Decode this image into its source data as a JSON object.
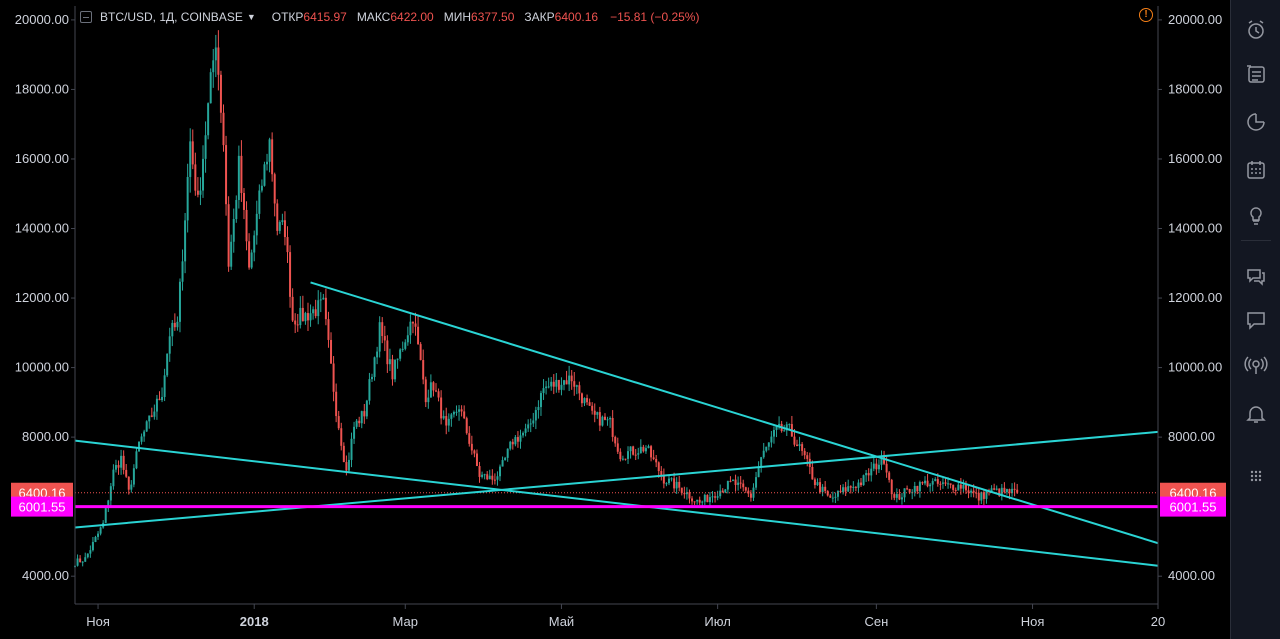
{
  "header": {
    "symbol": "BTC/USD, 1Д, COINBASE",
    "open_label": "ОТКР",
    "open_value": "6415.97",
    "high_label": "МАКС",
    "high_value": "6422.00",
    "low_label": "МИН",
    "low_value": "6377.50",
    "close_label": "ЗАКР",
    "close_value": "6400.16",
    "change": "−15.81 (−0.25%)"
  },
  "warning_icon": "!",
  "sidebar": {
    "icons": [
      "alarm-clock-icon",
      "watchlist-icon",
      "data-window-icon",
      "calendar-icon",
      "ideas-lightbulb-icon",
      "chat-icon",
      "private-chat-icon",
      "broadcast-icon",
      "notifications-bell-icon",
      "more-dots-icon"
    ]
  },
  "colors": {
    "up": "#26a69a",
    "down": "#ef5350",
    "trendline": "#2ad4d4",
    "support": "#ff00ff",
    "price_line": "#ef5350",
    "background": "#000000"
  },
  "chart_data": {
    "type": "candlestick",
    "symbol": "BTC/USD",
    "interval": "1Д",
    "exchange": "COINBASE",
    "ylim": [
      3200,
      20400
    ],
    "y_ticks": [
      "20000.00",
      "18000.00",
      "16000.00",
      "14000.00",
      "12000.00",
      "10000.00",
      "8000.00",
      "4000.00"
    ],
    "x_ticks": [
      "Ноя",
      "2018",
      "Мар",
      "Май",
      "Июл",
      "Сен",
      "Ноя",
      "20"
    ],
    "last_price_label": "6400.16",
    "support_label": "6001.55",
    "last_price": 6400.16,
    "support_level": 6001.55,
    "start_date": "2017-10-23",
    "end_date": "2018-12-20",
    "anchors": [
      [
        "2017-10-23",
        4400
      ],
      [
        "2017-10-27",
        4500
      ],
      [
        "2017-11-03",
        5500
      ],
      [
        "2017-11-07",
        7000
      ],
      [
        "2017-11-10",
        7400
      ],
      [
        "2017-11-13",
        6400
      ],
      [
        "2017-11-17",
        7800
      ],
      [
        "2017-11-26",
        9300
      ],
      [
        "2017-11-29",
        11000
      ],
      [
        "2017-12-02",
        11200
      ],
      [
        "2017-12-07",
        16500
      ],
      [
        "2017-12-10",
        14700
      ],
      [
        "2017-12-13",
        16800
      ],
      [
        "2017-12-17",
        19500
      ],
      [
        "2017-12-20",
        16500
      ],
      [
        "2017-12-22",
        13000
      ],
      [
        "2017-12-24",
        14200
      ],
      [
        "2017-12-26",
        15800
      ],
      [
        "2017-12-30",
        12800
      ],
      [
        "2018-01-04",
        15300
      ],
      [
        "2018-01-07",
        16500
      ],
      [
        "2018-01-10",
        14000
      ],
      [
        "2018-01-13",
        14000
      ],
      [
        "2018-01-16",
        11400
      ],
      [
        "2018-01-21",
        11500
      ],
      [
        "2018-01-28",
        11800
      ],
      [
        "2018-02-02",
        8800
      ],
      [
        "2018-02-06",
        7000
      ],
      [
        "2018-02-09",
        8300
      ],
      [
        "2018-02-13",
        8700
      ],
      [
        "2018-02-19",
        11100
      ],
      [
        "2018-02-24",
        9800
      ],
      [
        "2018-03-04",
        11500
      ],
      [
        "2018-03-09",
        9200
      ],
      [
        "2018-03-12",
        9500
      ],
      [
        "2018-03-17",
        8200
      ],
      [
        "2018-03-22",
        8900
      ],
      [
        "2018-03-30",
        6900
      ],
      [
        "2018-04-04",
        6800
      ],
      [
        "2018-04-07",
        7000
      ],
      [
        "2018-04-12",
        7900
      ],
      [
        "2018-04-18",
        8200
      ],
      [
        "2018-04-24",
        9400
      ],
      [
        "2018-05-05",
        9700
      ],
      [
        "2018-05-13",
        8600
      ],
      [
        "2018-05-20",
        8400
      ],
      [
        "2018-05-24",
        7500
      ],
      [
        "2018-06-03",
        7700
      ],
      [
        "2018-06-10",
        6800
      ],
      [
        "2018-06-17",
        6500
      ],
      [
        "2018-06-24",
        6100
      ],
      [
        "2018-06-30",
        6400
      ],
      [
        "2018-07-07",
        6700
      ],
      [
        "2018-07-14",
        6300
      ],
      [
        "2018-07-18",
        7400
      ],
      [
        "2018-07-24",
        8200
      ],
      [
        "2018-07-29",
        8200
      ],
      [
        "2018-08-04",
        7400
      ],
      [
        "2018-08-08",
        6700
      ],
      [
        "2018-08-14",
        6200
      ],
      [
        "2018-08-20",
        6500
      ],
      [
        "2018-08-26",
        6700
      ],
      [
        "2018-09-01",
        7200
      ],
      [
        "2018-09-04",
        7400
      ],
      [
        "2018-09-08",
        6200
      ],
      [
        "2018-09-14",
        6500
      ],
      [
        "2018-09-21",
        6700
      ],
      [
        "2018-09-28",
        6600
      ],
      [
        "2018-10-05",
        6600
      ],
      [
        "2018-10-11",
        6250
      ],
      [
        "2018-10-15",
        6450
      ],
      [
        "2018-10-20",
        6420
      ],
      [
        "2018-10-26",
        6400
      ]
    ],
    "trendlines": [
      {
        "name": "upper-resistance",
        "from": [
          "2018-01-23",
          12450
        ],
        "to": [
          "2018-12-20",
          4950
        ]
      },
      {
        "name": "lower-support-diagonal",
        "from": [
          "2017-10-23",
          7900
        ],
        "to": [
          "2018-12-20",
          4300
        ]
      },
      {
        "name": "rising-line",
        "from": [
          "2017-10-23",
          5400
        ],
        "to": [
          "2018-12-20",
          8150
        ]
      }
    ]
  }
}
